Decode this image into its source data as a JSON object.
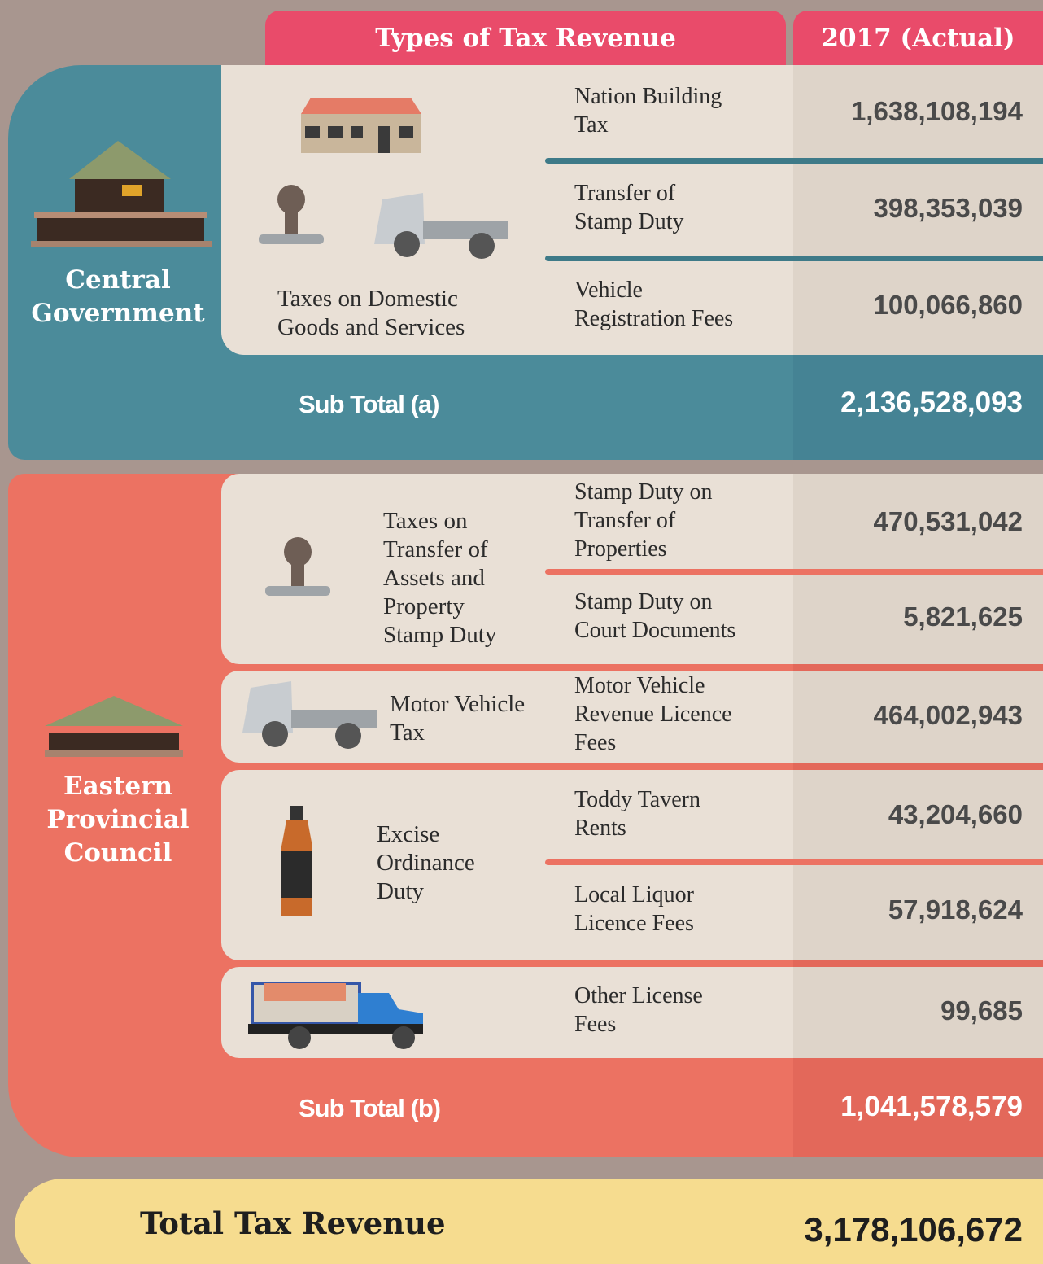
{
  "header": {
    "columns": [
      "Types of Tax Revenue",
      "2017 (Actual)"
    ]
  },
  "sections": [
    {
      "label": "Central\nGovernment",
      "groups": [
        {
          "category": "Taxes on Domestic\nGoods and Services",
          "items": [
            {
              "name": "Nation Building\nTax",
              "value": "1,638,108,194"
            },
            {
              "name": "Transfer of\nStamp Duty",
              "value": "398,353,039"
            },
            {
              "name": "Vehicle\nRegistration Fees",
              "value": "100,066,860"
            }
          ]
        }
      ],
      "subtotal": {
        "label": "Sub Total (a)",
        "value": "2,136,528,093"
      }
    },
    {
      "label": "Eastern\nProvincial\nCouncil",
      "groups": [
        {
          "category": "Taxes on\nTransfer of\nAssets and\nProperty\nStamp Duty",
          "items": [
            {
              "name": "Stamp Duty on\nTransfer of\nProperties",
              "value": "470,531,042"
            },
            {
              "name": "Stamp Duty on\nCourt Documents",
              "value": "5,821,625"
            }
          ]
        },
        {
          "category": "Motor Vehicle\nTax",
          "items": [
            {
              "name": "Motor Vehicle\nRevenue Licence\nFees",
              "value": "464,002,943"
            }
          ]
        },
        {
          "category": "Excise\nOrdinance\nDuty",
          "items": [
            {
              "name": "Toddy Tavern\nRents",
              "value": "43,204,660"
            },
            {
              "name": "Local Liquor\nLicence Fees",
              "value": "57,918,624"
            }
          ]
        },
        {
          "items": [
            {
              "name": "Other License\nFees",
              "value": "99,685"
            }
          ]
        }
      ],
      "subtotal": {
        "label": "Sub Total (b)",
        "value": "1,041,578,579"
      }
    }
  ],
  "total": {
    "label": "Total Tax Revenue",
    "value": "3,178,106,672"
  }
}
